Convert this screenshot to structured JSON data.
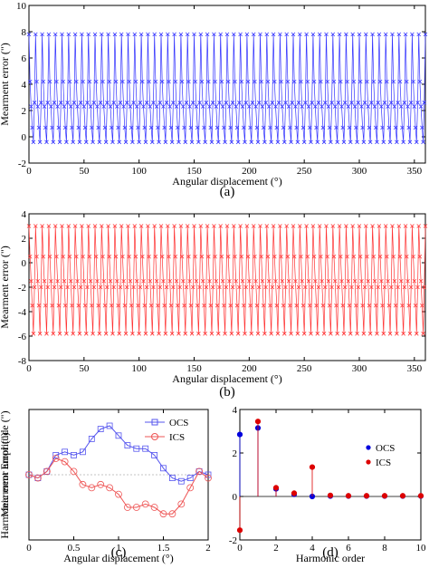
{
  "chart_data": [
    {
      "id": "a",
      "type": "line",
      "panel_label": "(a)",
      "xlabel": "Angular displacement (°)",
      "ylabel": "Mearment error (\")",
      "xlim": [
        0,
        360
      ],
      "ylim": [
        -2,
        10
      ],
      "xticks": [
        0,
        50,
        100,
        150,
        200,
        250,
        300,
        350
      ],
      "yticks": [
        -2,
        0,
        2,
        4,
        6,
        8,
        10
      ],
      "color": "#3333ff",
      "marker": "x",
      "series_pattern": {
        "period": 6,
        "sample_step": 1,
        "values": [
          7.8,
          4.2,
          2.3,
          0.7,
          -0.4,
          2.6
        ]
      },
      "series_note": ""
    },
    {
      "id": "b",
      "type": "line",
      "panel_label": "(b)",
      "xlabel": "Angular displacement (°)",
      "ylabel": "Mearment error (\")",
      "xlim": [
        0,
        360
      ],
      "ylim": [
        -8,
        4
      ],
      "xticks": [
        0,
        50,
        100,
        150,
        200,
        250,
        300,
        350
      ],
      "yticks": [
        -8,
        -6,
        -4,
        -2,
        0,
        2,
        4
      ],
      "color": "#ff3333",
      "marker": "x",
      "series_pattern": {
        "period": 6,
        "sample_step": 1,
        "values": [
          3.0,
          0.5,
          -1.5,
          -3.5,
          -5.8,
          -2.0
        ]
      },
      "series_note": ""
    },
    {
      "id": "c",
      "type": "line",
      "panel_label": "(c)",
      "xlabel": "Angular displacement (°)",
      "ylabel": "Mearment Error (\")",
      "xlim": [
        0,
        2
      ],
      "ylim": [
        -10,
        10
      ],
      "xticks": [
        0,
        0.5,
        1,
        1.5,
        2
      ],
      "yticks": [],
      "legend": "top-right",
      "series": [
        {
          "name": "OCS",
          "color": "#5555ee",
          "marker": "square",
          "x": [
            0,
            0.1,
            0.2,
            0.3,
            0.4,
            0.5,
            0.6,
            0.7,
            0.8,
            0.9,
            1.0,
            1.1,
            1.2,
            1.3,
            1.4,
            1.5,
            1.6,
            1.7,
            1.8,
            1.9,
            2.0
          ],
          "y": [
            0.0,
            -0.5,
            0.5,
            3.0,
            3.5,
            3.0,
            3.5,
            5.5,
            7.0,
            7.5,
            6.0,
            4.5,
            4.0,
            4.0,
            3.0,
            1.0,
            -0.5,
            -1.0,
            -0.5,
            0.5,
            0.0
          ]
        },
        {
          "name": "ICS",
          "color": "#ee5555",
          "marker": "circle",
          "x": [
            0,
            0.1,
            0.2,
            0.3,
            0.4,
            0.5,
            0.6,
            0.7,
            0.8,
            0.9,
            1.0,
            1.1,
            1.2,
            1.3,
            1.4,
            1.5,
            1.6,
            1.7,
            1.8,
            1.9,
            2.0
          ],
          "y": [
            0.0,
            -0.5,
            0.5,
            2.5,
            2.0,
            0.5,
            -1.5,
            -2.0,
            -1.5,
            -2.0,
            -3.0,
            -5.0,
            -5.0,
            -4.5,
            -5.0,
            -6.0,
            -6.0,
            -4.5,
            -2.0,
            0.5,
            -0.5
          ]
        }
      ]
    },
    {
      "id": "d",
      "type": "stem",
      "panel_label": "(d)",
      "xlabel": "Harmonic order",
      "ylabel": "Harmonic error amplitude (\")",
      "xlim": [
        0,
        10
      ],
      "ylim": [
        -2,
        4
      ],
      "xticks": [
        0,
        2,
        4,
        6,
        8,
        10
      ],
      "yticks": [
        -2,
        0,
        2,
        4
      ],
      "legend": "right",
      "series": [
        {
          "name": "OCS",
          "color": "#0000dd",
          "x": [
            0,
            1,
            2,
            3,
            4,
            5,
            6,
            7,
            8,
            9,
            10
          ],
          "y": [
            2.85,
            3.15,
            0.35,
            0.1,
            0.0,
            0.02,
            0.02,
            0.02,
            0.02,
            0.02,
            0.02
          ]
        },
        {
          "name": "ICS",
          "color": "#dd0000",
          "x": [
            0,
            1,
            2,
            3,
            4,
            5,
            6,
            7,
            8,
            9,
            10
          ],
          "y": [
            -1.55,
            3.45,
            0.4,
            0.15,
            1.35,
            0.05,
            0.03,
            0.03,
            0.03,
            0.03,
            0.03
          ]
        }
      ]
    }
  ]
}
